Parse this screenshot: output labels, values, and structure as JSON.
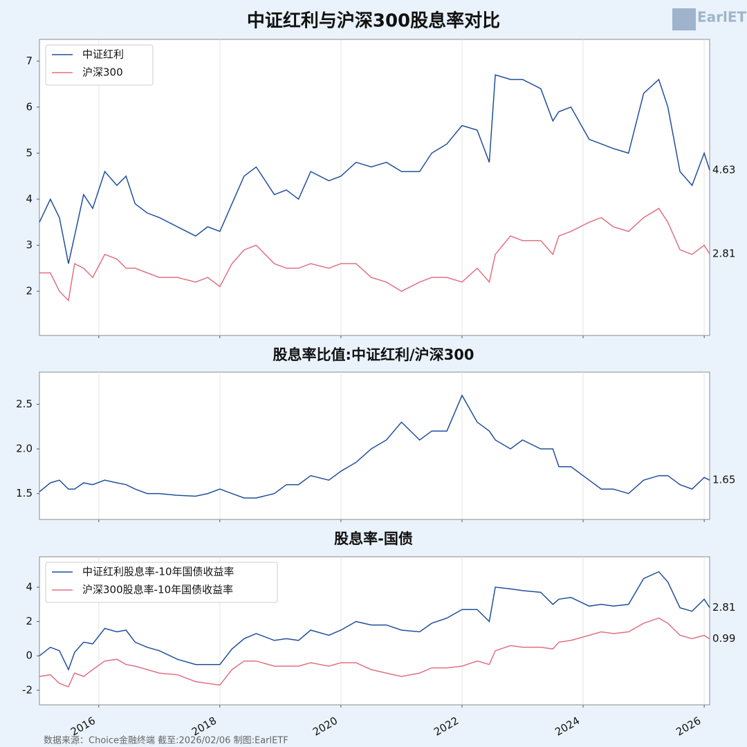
{
  "logo": "EarlETF",
  "source": "数据来源：Choice金融终端 截至:2026/02/06 制图:EarlETF",
  "chart_data": [
    {
      "type": "line",
      "title": "中证红利与沪深300股息率对比",
      "x": [
        2015.02,
        2015.2,
        2015.35,
        2015.5,
        2015.6,
        2015.75,
        2015.9,
        2016.1,
        2016.3,
        2016.45,
        2016.6,
        2016.8,
        2017.0,
        2017.3,
        2017.6,
        2017.8,
        2018.0,
        2018.2,
        2018.4,
        2018.6,
        2018.9,
        2019.1,
        2019.3,
        2019.5,
        2019.8,
        2020.0,
        2020.25,
        2020.5,
        2020.75,
        2021.0,
        2021.3,
        2021.5,
        2021.75,
        2022.0,
        2022.25,
        2022.45,
        2022.55,
        2022.8,
        2023.0,
        2023.3,
        2023.5,
        2023.6,
        2023.8,
        2024.1,
        2024.3,
        2024.5,
        2024.75,
        2025.0,
        2025.25,
        2025.4,
        2025.6,
        2025.8,
        2026.0,
        2026.09
      ],
      "series": [
        {
          "name": "中证红利",
          "color": "#1f4e9c",
          "values": [
            3.5,
            4.0,
            3.6,
            2.6,
            3.2,
            4.1,
            3.8,
            4.6,
            4.3,
            4.5,
            3.9,
            3.7,
            3.6,
            3.4,
            3.2,
            3.4,
            3.3,
            3.9,
            4.5,
            4.7,
            4.1,
            4.2,
            4.0,
            4.6,
            4.4,
            4.5,
            4.8,
            4.7,
            4.8,
            4.6,
            4.6,
            5.0,
            5.2,
            5.6,
            5.5,
            4.8,
            6.7,
            6.6,
            6.6,
            6.4,
            5.7,
            5.9,
            6.0,
            5.3,
            5.2,
            5.1,
            5.0,
            6.3,
            6.6,
            6.0,
            4.6,
            4.3,
            5.0,
            4.63
          ]
        },
        {
          "name": "沪深300",
          "color": "#e07080",
          "values": [
            2.4,
            2.4,
            2.0,
            1.8,
            2.6,
            2.5,
            2.3,
            2.8,
            2.7,
            2.5,
            2.5,
            2.4,
            2.3,
            2.3,
            2.2,
            2.3,
            2.1,
            2.6,
            2.9,
            3.0,
            2.6,
            2.5,
            2.5,
            2.6,
            2.5,
            2.6,
            2.6,
            2.3,
            2.2,
            2.0,
            2.2,
            2.3,
            2.3,
            2.2,
            2.5,
            2.2,
            2.8,
            3.2,
            3.1,
            3.1,
            2.8,
            3.2,
            3.3,
            3.5,
            3.6,
            3.4,
            3.3,
            3.6,
            3.8,
            3.5,
            2.9,
            2.8,
            3.0,
            2.81
          ]
        }
      ],
      "xlim": [
        2015.02,
        2026.09
      ],
      "xticks": [
        2016,
        2018,
        2020,
        2022,
        2024,
        2026
      ],
      "ylim": [
        1.04,
        7.47
      ],
      "yticks": [
        2,
        3,
        4,
        5,
        6,
        7
      ],
      "grid": true,
      "legend": "upper left"
    },
    {
      "type": "line",
      "title": "股息率比值:中证红利/沪深300",
      "x": [
        2015.02,
        2015.2,
        2015.35,
        2015.5,
        2015.6,
        2015.75,
        2015.9,
        2016.1,
        2016.3,
        2016.45,
        2016.6,
        2016.8,
        2017.0,
        2017.3,
        2017.6,
        2017.8,
        2018.0,
        2018.2,
        2018.4,
        2018.6,
        2018.9,
        2019.1,
        2019.3,
        2019.5,
        2019.8,
        2020.0,
        2020.25,
        2020.5,
        2020.75,
        2021.0,
        2021.3,
        2021.5,
        2021.75,
        2022.0,
        2022.25,
        2022.45,
        2022.55,
        2022.8,
        2023.0,
        2023.3,
        2023.5,
        2023.6,
        2023.8,
        2024.1,
        2024.3,
        2024.5,
        2024.75,
        2025.0,
        2025.25,
        2025.4,
        2025.6,
        2025.8,
        2026.0,
        2026.09
      ],
      "series": [
        {
          "color": "#1f4e9c",
          "values": [
            1.52,
            1.62,
            1.65,
            1.55,
            1.55,
            1.62,
            1.6,
            1.65,
            1.62,
            1.6,
            1.55,
            1.5,
            1.5,
            1.48,
            1.47,
            1.5,
            1.55,
            1.5,
            1.45,
            1.45,
            1.5,
            1.6,
            1.6,
            1.7,
            1.65,
            1.75,
            1.85,
            2.0,
            2.1,
            2.3,
            2.1,
            2.2,
            2.2,
            2.6,
            2.3,
            2.2,
            2.1,
            2.0,
            2.1,
            2.0,
            2.0,
            1.8,
            1.8,
            1.65,
            1.55,
            1.55,
            1.5,
            1.65,
            1.7,
            1.7,
            1.6,
            1.55,
            1.68,
            1.65
          ]
        }
      ],
      "xlim": [
        2015.02,
        2026.09
      ],
      "xticks": [
        2016,
        2018,
        2020,
        2022,
        2024,
        2026
      ],
      "ylim": [
        1.21,
        2.86
      ],
      "yticks": [
        1.5,
        {
          "value": 2,
          "label": "2.0"
        },
        2.5
      ],
      "grid": true
    },
    {
      "type": "line",
      "title": "股息率-国债",
      "x": [
        2015.02,
        2015.2,
        2015.35,
        2015.5,
        2015.6,
        2015.75,
        2015.9,
        2016.1,
        2016.3,
        2016.45,
        2016.6,
        2016.8,
        2017.0,
        2017.3,
        2017.6,
        2017.8,
        2018.0,
        2018.2,
        2018.4,
        2018.6,
        2018.9,
        2019.1,
        2019.3,
        2019.5,
        2019.8,
        2020.0,
        2020.25,
        2020.5,
        2020.75,
        2021.0,
        2021.3,
        2021.5,
        2021.75,
        2022.0,
        2022.25,
        2022.45,
        2022.55,
        2022.8,
        2023.0,
        2023.3,
        2023.5,
        2023.6,
        2023.8,
        2024.1,
        2024.3,
        2024.5,
        2024.75,
        2025.0,
        2025.25,
        2025.4,
        2025.6,
        2025.8,
        2026.0,
        2026.09
      ],
      "series": [
        {
          "name": "中证红利股息率-10年国债收益率",
          "color": "#1f4e9c",
          "values": [
            0.0,
            0.5,
            0.3,
            -0.8,
            0.2,
            0.8,
            0.7,
            1.6,
            1.4,
            1.5,
            0.8,
            0.5,
            0.3,
            -0.2,
            -0.5,
            -0.5,
            -0.5,
            0.4,
            1.0,
            1.3,
            0.9,
            1.0,
            0.9,
            1.5,
            1.2,
            1.5,
            2.0,
            1.8,
            1.8,
            1.5,
            1.4,
            1.9,
            2.2,
            2.7,
            2.7,
            2.0,
            4.0,
            3.9,
            3.8,
            3.7,
            3.0,
            3.3,
            3.4,
            2.9,
            3.0,
            2.9,
            3.0,
            4.5,
            4.9,
            4.3,
            2.8,
            2.6,
            3.3,
            2.81
          ]
        },
        {
          "name": "沪深300股息率-10年国债收益率",
          "color": "#e07080",
          "values": [
            -1.2,
            -1.1,
            -1.6,
            -1.8,
            -1.0,
            -1.2,
            -0.8,
            -0.3,
            -0.2,
            -0.5,
            -0.6,
            -0.8,
            -1.0,
            -1.1,
            -1.5,
            -1.6,
            -1.7,
            -0.8,
            -0.3,
            -0.3,
            -0.6,
            -0.6,
            -0.6,
            -0.4,
            -0.6,
            -0.4,
            -0.4,
            -0.8,
            -1.0,
            -1.2,
            -1.0,
            -0.7,
            -0.7,
            -0.6,
            -0.3,
            -0.5,
            0.3,
            0.6,
            0.5,
            0.5,
            0.4,
            0.8,
            0.9,
            1.2,
            1.4,
            1.3,
            1.4,
            1.9,
            2.2,
            1.9,
            1.2,
            1.0,
            1.2,
            0.99
          ]
        }
      ],
      "xlim": [
        2015.02,
        2026.09
      ],
      "xticks": [
        2016,
        2018,
        2020,
        2022,
        2024,
        2026
      ],
      "ylim": [
        -2.85,
        5.77
      ],
      "yticks": [
        -2,
        0,
        2,
        4
      ],
      "grid": true,
      "legend": "upper left"
    }
  ]
}
